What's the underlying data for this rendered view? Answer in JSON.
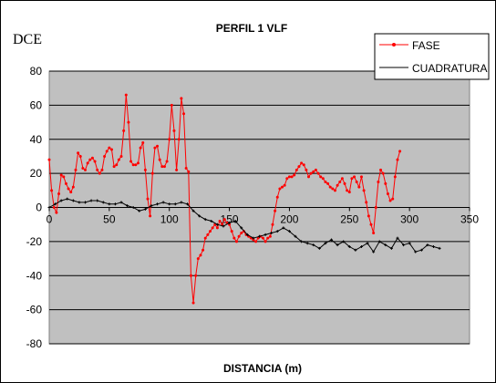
{
  "chart_data": {
    "type": "line",
    "title": "PERFIL 1 VLF",
    "ylabel": "DCE",
    "xlabel": "DISTANCIA (m)",
    "xlim": [
      0,
      350
    ],
    "ylim": [
      -80,
      80
    ],
    "x_ticks": [
      "0",
      "50",
      "100",
      "150",
      "200",
      "250",
      "300",
      "350"
    ],
    "y_ticks": [
      "80",
      "60",
      "40",
      "20",
      "0",
      "-20",
      "-40",
      "-60",
      "-80"
    ],
    "x_tick_values": [
      0,
      50,
      100,
      150,
      200,
      250,
      300,
      350
    ],
    "y_tick_values": [
      80,
      60,
      40,
      20,
      0,
      -20,
      -40,
      -60,
      -80
    ],
    "grid": true,
    "legend": "top-right",
    "series": [
      {
        "name": "FASE",
        "color": "#ff0000",
        "marker": "dot",
        "points": [
          [
            0,
            28
          ],
          [
            2,
            10
          ],
          [
            4,
            0
          ],
          [
            6,
            -3
          ],
          [
            8,
            8
          ],
          [
            10,
            19
          ],
          [
            12,
            18
          ],
          [
            14,
            14
          ],
          [
            16,
            11
          ],
          [
            18,
            9
          ],
          [
            20,
            12
          ],
          [
            22,
            22
          ],
          [
            24,
            32
          ],
          [
            26,
            30
          ],
          [
            28,
            23
          ],
          [
            30,
            22
          ],
          [
            32,
            26
          ],
          [
            34,
            28
          ],
          [
            36,
            29
          ],
          [
            38,
            27
          ],
          [
            40,
            22
          ],
          [
            42,
            20
          ],
          [
            44,
            22
          ],
          [
            46,
            30
          ],
          [
            48,
            33
          ],
          [
            50,
            35
          ],
          [
            52,
            34
          ],
          [
            54,
            24
          ],
          [
            56,
            25
          ],
          [
            58,
            28
          ],
          [
            60,
            30
          ],
          [
            62,
            45
          ],
          [
            64,
            66
          ],
          [
            66,
            50
          ],
          [
            68,
            27
          ],
          [
            70,
            25
          ],
          [
            72,
            25
          ],
          [
            74,
            26
          ],
          [
            76,
            35
          ],
          [
            78,
            38
          ],
          [
            80,
            22
          ],
          [
            82,
            5
          ],
          [
            84,
            -5
          ],
          [
            86,
            20
          ],
          [
            88,
            35
          ],
          [
            90,
            36
          ],
          [
            92,
            28
          ],
          [
            94,
            24
          ],
          [
            96,
            24
          ],
          [
            98,
            27
          ],
          [
            100,
            40
          ],
          [
            102,
            60
          ],
          [
            104,
            45
          ],
          [
            106,
            22
          ],
          [
            108,
            40
          ],
          [
            110,
            64
          ],
          [
            112,
            55
          ],
          [
            114,
            23
          ],
          [
            116,
            21
          ],
          [
            118,
            -40
          ],
          [
            120,
            -56
          ],
          [
            122,
            -40
          ],
          [
            124,
            -30
          ],
          [
            126,
            -28
          ],
          [
            128,
            -25
          ],
          [
            130,
            -18
          ],
          [
            132,
            -16
          ],
          [
            134,
            -14
          ],
          [
            136,
            -12
          ],
          [
            138,
            -10
          ],
          [
            140,
            -12
          ],
          [
            142,
            -8
          ],
          [
            144,
            -10
          ],
          [
            146,
            -7
          ],
          [
            148,
            -9
          ],
          [
            150,
            -10
          ],
          [
            152,
            -14
          ],
          [
            154,
            -18
          ],
          [
            156,
            -20
          ],
          [
            158,
            -17
          ],
          [
            160,
            -15
          ],
          [
            162,
            -14
          ],
          [
            164,
            -16
          ],
          [
            166,
            -17
          ],
          [
            168,
            -18
          ],
          [
            170,
            -19
          ],
          [
            172,
            -20
          ],
          [
            174,
            -18
          ],
          [
            176,
            -17
          ],
          [
            178,
            -18
          ],
          [
            180,
            -20
          ],
          [
            182,
            -18
          ],
          [
            184,
            -17
          ],
          [
            186,
            -10
          ],
          [
            188,
            -2
          ],
          [
            190,
            6
          ],
          [
            192,
            11
          ],
          [
            194,
            12
          ],
          [
            196,
            13
          ],
          [
            198,
            17
          ],
          [
            200,
            18
          ],
          [
            202,
            18
          ],
          [
            204,
            19
          ],
          [
            206,
            22
          ],
          [
            208,
            24
          ],
          [
            210,
            26
          ],
          [
            212,
            25
          ],
          [
            214,
            22
          ],
          [
            216,
            18
          ],
          [
            218,
            20
          ],
          [
            220,
            21
          ],
          [
            222,
            22
          ],
          [
            224,
            20
          ],
          [
            226,
            18
          ],
          [
            228,
            17
          ],
          [
            230,
            15
          ],
          [
            232,
            14
          ],
          [
            234,
            12
          ],
          [
            236,
            11
          ],
          [
            238,
            10
          ],
          [
            240,
            13
          ],
          [
            242,
            15
          ],
          [
            244,
            17
          ],
          [
            246,
            14
          ],
          [
            248,
            10
          ],
          [
            250,
            9
          ],
          [
            252,
            17
          ],
          [
            254,
            18
          ],
          [
            256,
            15
          ],
          [
            258,
            12
          ],
          [
            260,
            18
          ],
          [
            262,
            10
          ],
          [
            264,
            3
          ],
          [
            266,
            -5
          ],
          [
            268,
            -10
          ],
          [
            270,
            -15
          ],
          [
            272,
            0
          ],
          [
            274,
            15
          ],
          [
            276,
            22
          ],
          [
            278,
            20
          ],
          [
            280,
            14
          ],
          [
            282,
            8
          ],
          [
            284,
            4
          ],
          [
            286,
            5
          ],
          [
            288,
            18
          ],
          [
            290,
            28
          ],
          [
            292,
            33
          ]
        ]
      },
      {
        "name": "CUADRATURA",
        "color": "#000000",
        "marker": "plus",
        "points": [
          [
            0,
            0
          ],
          [
            5,
            2
          ],
          [
            10,
            4
          ],
          [
            15,
            5
          ],
          [
            20,
            4
          ],
          [
            25,
            3
          ],
          [
            30,
            3
          ],
          [
            35,
            4
          ],
          [
            40,
            4
          ],
          [
            45,
            3
          ],
          [
            50,
            2
          ],
          [
            55,
            2
          ],
          [
            60,
            3
          ],
          [
            65,
            1
          ],
          [
            70,
            0
          ],
          [
            75,
            -2
          ],
          [
            80,
            -1
          ],
          [
            85,
            1
          ],
          [
            90,
            2
          ],
          [
            95,
            3
          ],
          [
            100,
            2
          ],
          [
            105,
            2
          ],
          [
            110,
            3
          ],
          [
            115,
            2
          ],
          [
            120,
            -2
          ],
          [
            125,
            -5
          ],
          [
            130,
            -7
          ],
          [
            135,
            -8
          ],
          [
            140,
            -10
          ],
          [
            145,
            -11
          ],
          [
            150,
            -9
          ],
          [
            155,
            -8
          ],
          [
            160,
            -12
          ],
          [
            165,
            -16
          ],
          [
            170,
            -18
          ],
          [
            175,
            -17
          ],
          [
            180,
            -16
          ],
          [
            185,
            -15
          ],
          [
            190,
            -14
          ],
          [
            195,
            -12
          ],
          [
            200,
            -14
          ],
          [
            205,
            -17
          ],
          [
            210,
            -20
          ],
          [
            215,
            -21
          ],
          [
            220,
            -22
          ],
          [
            225,
            -24
          ],
          [
            230,
            -21
          ],
          [
            235,
            -19
          ],
          [
            240,
            -22
          ],
          [
            245,
            -20
          ],
          [
            250,
            -23
          ],
          [
            255,
            -25
          ],
          [
            260,
            -23
          ],
          [
            265,
            -21
          ],
          [
            270,
            -26
          ],
          [
            275,
            -20
          ],
          [
            280,
            -22
          ],
          [
            285,
            -24
          ],
          [
            290,
            -18
          ],
          [
            295,
            -22
          ],
          [
            300,
            -21
          ],
          [
            305,
            -26
          ],
          [
            310,
            -25
          ],
          [
            315,
            -22
          ],
          [
            320,
            -23
          ],
          [
            325,
            -24
          ]
        ]
      }
    ]
  }
}
